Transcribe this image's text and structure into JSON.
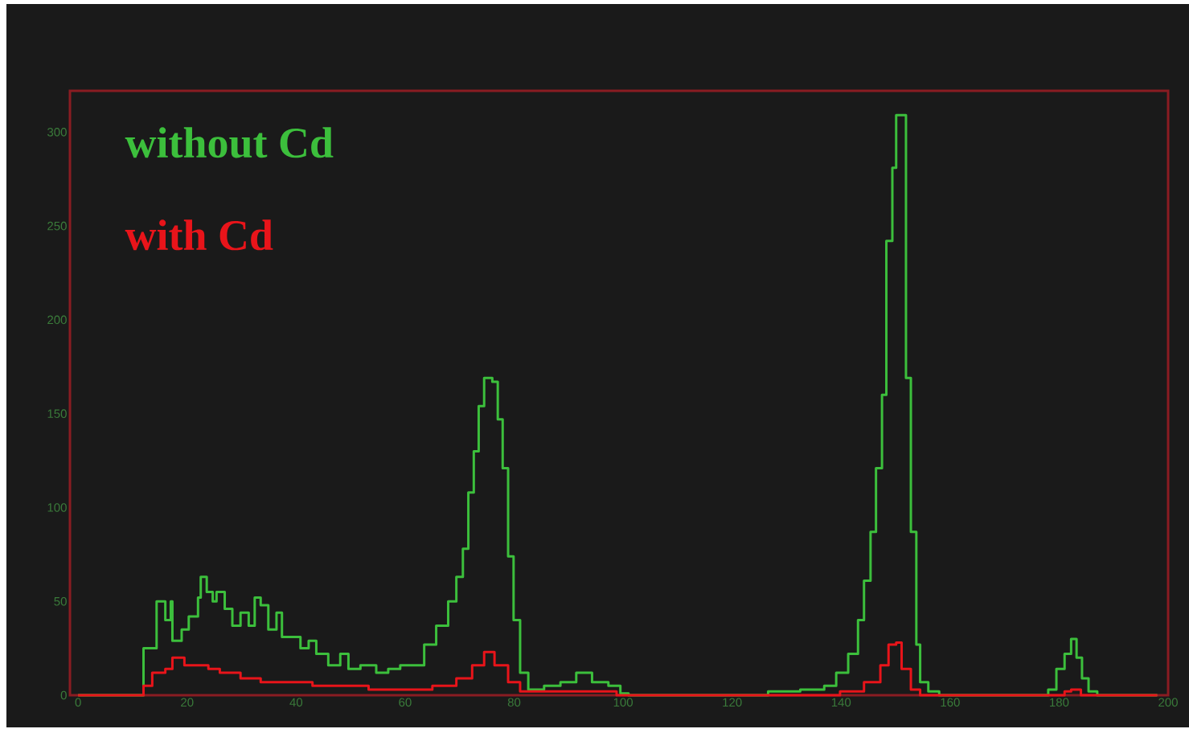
{
  "chart_data": {
    "type": "step",
    "xlim": [
      -1.5,
      200
    ],
    "ylim": [
      0,
      322
    ],
    "xticks": [
      0,
      20,
      40,
      60,
      80,
      100,
      120,
      140,
      160,
      180,
      200
    ],
    "yticks": [
      0,
      50,
      100,
      150,
      200,
      250,
      300
    ],
    "grid": false,
    "legend": "top left",
    "marker": "none",
    "line_style": "solid",
    "series": [
      {
        "name": "without Cd",
        "color": "#3cbf3c",
        "x": [
          0,
          11,
          12,
          14.4,
          16,
          17,
          17.3,
          19,
          20.3,
          22,
          22.5,
          23.6,
          24.7,
          25.4,
          26.9,
          28.3,
          29.8,
          31.3,
          32.4,
          33.5,
          34.9,
          36.4,
          37.4,
          39.3,
          40.8,
          42.3,
          43.7,
          45.9,
          48.1,
          49.6,
          51.8,
          54.7,
          56.9,
          59.1,
          61.3,
          63.5,
          65.7,
          67.9,
          69.4,
          70.6,
          71.6,
          72.6,
          73.5,
          74.5,
          76,
          77,
          77.9,
          78.9,
          79.9,
          81.1,
          82.6,
          85.5,
          88.5,
          91.4,
          94.3,
          97.3,
          99.5,
          101,
          126.6,
          132.5,
          136.9,
          139.1,
          141.3,
          143.1,
          144.2,
          145.4,
          146.4,
          147.5,
          148.3,
          149.4,
          150.1,
          151.1,
          151.9,
          152.8,
          153.8,
          154.5,
          156,
          158,
          178,
          179.5,
          181,
          182.2,
          183.2,
          184.2,
          185.4,
          187,
          198
        ],
        "values": [
          0,
          0,
          25,
          50,
          40,
          50,
          29,
          35,
          42,
          52,
          63,
          55,
          50,
          55,
          46,
          37,
          44,
          37,
          52,
          48,
          35,
          44,
          31,
          31,
          25,
          29,
          22,
          16,
          22,
          14,
          16,
          12,
          14,
          16,
          16,
          27,
          37,
          50,
          63,
          78,
          108,
          130,
          154,
          169,
          167,
          147,
          121,
          74,
          40,
          12,
          3,
          5,
          7,
          12,
          7,
          5,
          1,
          0,
          2,
          3,
          5,
          12,
          22,
          40,
          61,
          87,
          121,
          160,
          242,
          281,
          309,
          309,
          169,
          87,
          27,
          7,
          2,
          0,
          3,
          14,
          22,
          30,
          20,
          9,
          2,
          0,
          0
        ]
      },
      {
        "name": "with Cd",
        "color": "#e8141a",
        "x": [
          0,
          11,
          12,
          13.6,
          16,
          17.3,
          19.5,
          21.7,
          23.9,
          26,
          29.8,
          33.5,
          38.6,
          43,
          47.4,
          53.3,
          59.1,
          65,
          69.4,
          72.3,
          74.5,
          76.4,
          78.9,
          81.1,
          88.5,
          94.3,
          98.8,
          139.8,
          144.2,
          147.2,
          148.7,
          150.1,
          151.1,
          152.8,
          154.5,
          181,
          182.2,
          184,
          198
        ],
        "values": [
          0,
          0,
          5,
          12,
          14,
          20,
          16,
          16,
          14,
          12,
          9,
          7,
          7,
          5,
          5,
          3,
          3,
          5,
          9,
          16,
          23,
          16,
          7,
          2,
          2,
          2,
          0,
          2,
          7,
          16,
          27,
          28,
          14,
          3,
          0,
          2,
          3,
          0,
          0
        ]
      }
    ]
  }
}
